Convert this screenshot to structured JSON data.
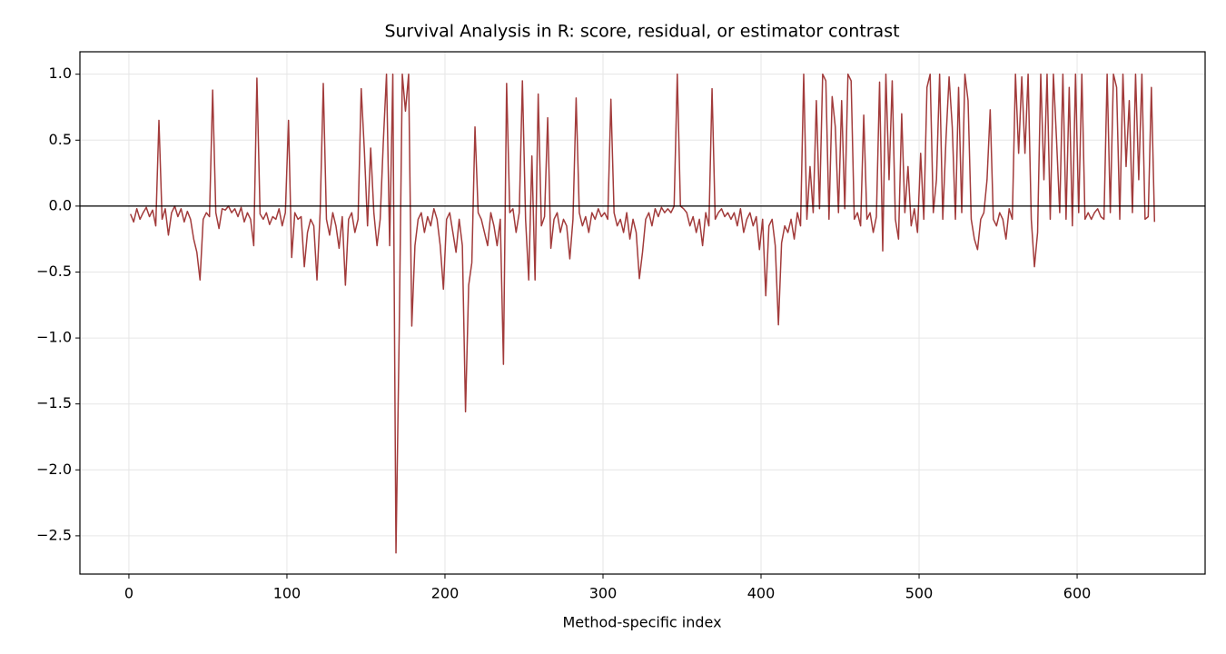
{
  "chart_data": {
    "type": "line",
    "title": "Survival Analysis in R: score, residual, or estimator contrast",
    "xlabel": "Method-specific index",
    "color": "#a23b3b",
    "grid": true,
    "hline": 0,
    "xlim": [
      -31,
      681
    ],
    "ylim": [
      -2.79,
      1.17
    ],
    "xticks": [
      0,
      100,
      200,
      300,
      400,
      500,
      600
    ],
    "yticks": [
      {
        "value": -2.5,
        "label": "−2.5"
      },
      {
        "value": -2,
        "label": "−2.0"
      },
      {
        "value": -1.5,
        "label": "−1.5"
      },
      {
        "value": -1,
        "label": "−1.0"
      },
      {
        "value": -0.5,
        "label": "−0.5"
      },
      {
        "value": 0,
        "label": "0.0"
      },
      0.5,
      {
        "value": 1,
        "label": "1.0"
      }
    ],
    "x": [
      1,
      3,
      5,
      7,
      9,
      11,
      13,
      15,
      17,
      19,
      21,
      23,
      25,
      27,
      29,
      31,
      33,
      35,
      37,
      39,
      41,
      43,
      45,
      47,
      49,
      51,
      53,
      55,
      57,
      59,
      61,
      63,
      65,
      67,
      69,
      71,
      73,
      75,
      77,
      79,
      81,
      83,
      85,
      87,
      89,
      91,
      93,
      95,
      97,
      99,
      101,
      103,
      105,
      107,
      109,
      111,
      113,
      115,
      117,
      119,
      121,
      123,
      125,
      127,
      129,
      131,
      133,
      135,
      137,
      139,
      141,
      143,
      145,
      147,
      149,
      151,
      153,
      155,
      157,
      159,
      161,
      163,
      165,
      167,
      169,
      171,
      173,
      175,
      177,
      179,
      181,
      183,
      185,
      187,
      189,
      191,
      193,
      195,
      197,
      199,
      201,
      203,
      205,
      207,
      209,
      211,
      213,
      215,
      217,
      219,
      221,
      223,
      225,
      227,
      229,
      231,
      233,
      235,
      237,
      239,
      241,
      243,
      245,
      247,
      249,
      251,
      253,
      255,
      257,
      259,
      261,
      263,
      265,
      267,
      269,
      271,
      273,
      275,
      277,
      279,
      281,
      283,
      285,
      287,
      289,
      291,
      293,
      295,
      297,
      299,
      301,
      303,
      305,
      307,
      309,
      311,
      313,
      315,
      317,
      319,
      321,
      323,
      325,
      327,
      329,
      331,
      333,
      335,
      337,
      339,
      341,
      343,
      345,
      347,
      349,
      351,
      353,
      355,
      357,
      359,
      361,
      363,
      365,
      367,
      369,
      371,
      373,
      375,
      377,
      379,
      381,
      383,
      385,
      387,
      389,
      391,
      393,
      395,
      397,
      399,
      401,
      403,
      405,
      407,
      409,
      411,
      413,
      415,
      417,
      419,
      421,
      423,
      425,
      427,
      429,
      431,
      433,
      435,
      437,
      439,
      441,
      443,
      445,
      447,
      449,
      451,
      453,
      455,
      457,
      459,
      461,
      463,
      465,
      467,
      469,
      471,
      473,
      475,
      477,
      479,
      481,
      483,
      485,
      487,
      489,
      491,
      493,
      495,
      497,
      499,
      501,
      503,
      505,
      507,
      509,
      511,
      513,
      515,
      517,
      519,
      521,
      523,
      525,
      527,
      529,
      531,
      533,
      535,
      537,
      539,
      541,
      543,
      545,
      547,
      549,
      551,
      553,
      555,
      557,
      559,
      561,
      563,
      565,
      567,
      569,
      571,
      573,
      575,
      577,
      579,
      581,
      583,
      585,
      587,
      589,
      591,
      593,
      595,
      597,
      599,
      601,
      603,
      605,
      607,
      609,
      611,
      613,
      615,
      617,
      619,
      621,
      623,
      625,
      627,
      629,
      631,
      633,
      635,
      637,
      639,
      641,
      643,
      645,
      647,
      649
    ],
    "values": [
      -0.06,
      -0.12,
      -0.02,
      -0.1,
      -0.05,
      -0.01,
      -0.08,
      -0.03,
      -0.15,
      0.65,
      -0.1,
      -0.02,
      -0.22,
      -0.05,
      0,
      -0.08,
      -0.02,
      -0.12,
      -0.04,
      -0.1,
      -0.25,
      -0.35,
      -0.56,
      -0.1,
      -0.05,
      -0.08,
      0.88,
      -0.05,
      -0.17,
      -0.02,
      -0.03,
      0,
      -0.05,
      -0.02,
      -0.08,
      -0.01,
      -0.12,
      -0.05,
      -0.1,
      -0.3,
      0.97,
      -0.06,
      -0.1,
      -0.05,
      -0.14,
      -0.08,
      -0.1,
      -0.02,
      -0.15,
      -0.05,
      0.65,
      -0.39,
      -0.05,
      -0.1,
      -0.08,
      -0.46,
      -0.2,
      -0.1,
      -0.15,
      -0.56,
      -0.05,
      0.93,
      -0.1,
      -0.22,
      -0.05,
      -0.15,
      -0.32,
      -0.08,
      -0.6,
      -0.1,
      -0.05,
      -0.2,
      -0.1,
      0.89,
      0.42,
      -0.15,
      0.44,
      -0.05,
      -0.3,
      -0.1,
      0.49,
      1.0,
      -0.3,
      1.0,
      -2.63,
      -1.0,
      1.0,
      0.72,
      1.0,
      -0.91,
      -0.3,
      -0.1,
      -0.05,
      -0.2,
      -0.08,
      -0.15,
      -0.02,
      -0.1,
      -0.3,
      -0.63,
      -0.1,
      -0.05,
      -0.2,
      -0.35,
      -0.1,
      -0.3,
      -1.56,
      -0.6,
      -0.43,
      0.6,
      -0.05,
      -0.1,
      -0.2,
      -0.3,
      -0.05,
      -0.15,
      -0.3,
      -0.1,
      -1.2,
      0.93,
      -0.05,
      -0.02,
      -0.2,
      -0.05,
      0.95,
      -0.1,
      -0.56,
      0.38,
      -0.56,
      0.85,
      -0.15,
      -0.08,
      0.67,
      -0.32,
      -0.1,
      -0.05,
      -0.2,
      -0.1,
      -0.15,
      -0.4,
      -0.1,
      0.82,
      -0.05,
      -0.15,
      -0.08,
      -0.2,
      -0.05,
      -0.1,
      -0.02,
      -0.08,
      -0.05,
      -0.1,
      0.81,
      -0.05,
      -0.15,
      -0.1,
      -0.2,
      -0.05,
      -0.25,
      -0.1,
      -0.2,
      -0.55,
      -0.35,
      -0.1,
      -0.05,
      -0.15,
      -0.02,
      -0.08,
      -0.01,
      -0.05,
      -0.02,
      -0.05,
      0,
      1.0,
      0,
      -0.02,
      -0.05,
      -0.15,
      -0.08,
      -0.2,
      -0.1,
      -0.3,
      -0.05,
      -0.15,
      0.89,
      -0.1,
      -0.05,
      -0.02,
      -0.08,
      -0.05,
      -0.1,
      -0.05,
      -0.15,
      -0.02,
      -0.2,
      -0.1,
      -0.05,
      -0.15,
      -0.08,
      -0.33,
      -0.1,
      -0.68,
      -0.15,
      -0.1,
      -0.3,
      -0.9,
      -0.28,
      -0.15,
      -0.2,
      -0.1,
      -0.25,
      -0.05,
      -0.15,
      1.0,
      -0.1,
      0.3,
      -0.05,
      0.8,
      -0.02,
      1.0,
      0.95,
      -0.1,
      0.83,
      0.6,
      -0.05,
      0.8,
      -0.02,
      1.0,
      0.95,
      -0.1,
      -0.05,
      -0.15,
      0.69,
      -0.1,
      -0.05,
      -0.2,
      -0.08,
      0.94,
      -0.34,
      1.0,
      0.2,
      0.95,
      -0.1,
      -0.25,
      0.7,
      -0.05,
      0.3,
      -0.15,
      -0.02,
      -0.2,
      0.4,
      -0.1,
      0.9,
      1.0,
      -0.05,
      0.2,
      1.0,
      -0.1,
      0.5,
      0.98,
      0.6,
      -0.1,
      0.9,
      -0.05,
      1.0,
      0.8,
      -0.1,
      -0.25,
      -0.33,
      -0.1,
      -0.05,
      0.2,
      0.73,
      -0.1,
      -0.15,
      -0.05,
      -0.1,
      -0.25,
      -0.02,
      -0.1,
      1.0,
      0.4,
      0.98,
      0.4,
      1.0,
      -0.1,
      -0.46,
      -0.2,
      1.0,
      0.2,
      1.0,
      -0.1,
      1.0,
      0.5,
      -0.05,
      1.0,
      -0.1,
      0.9,
      -0.15,
      1.0,
      -0.05,
      1.0,
      -0.1,
      -0.05,
      -0.1,
      -0.05,
      -0.02,
      -0.08,
      -0.1,
      1.0,
      -0.05,
      1.0,
      0.9,
      -0.1,
      1.0,
      0.3,
      0.8,
      -0.05,
      1.0,
      0.2,
      1.0,
      -0.1,
      -0.08,
      0.9,
      -0.12
    ]
  }
}
